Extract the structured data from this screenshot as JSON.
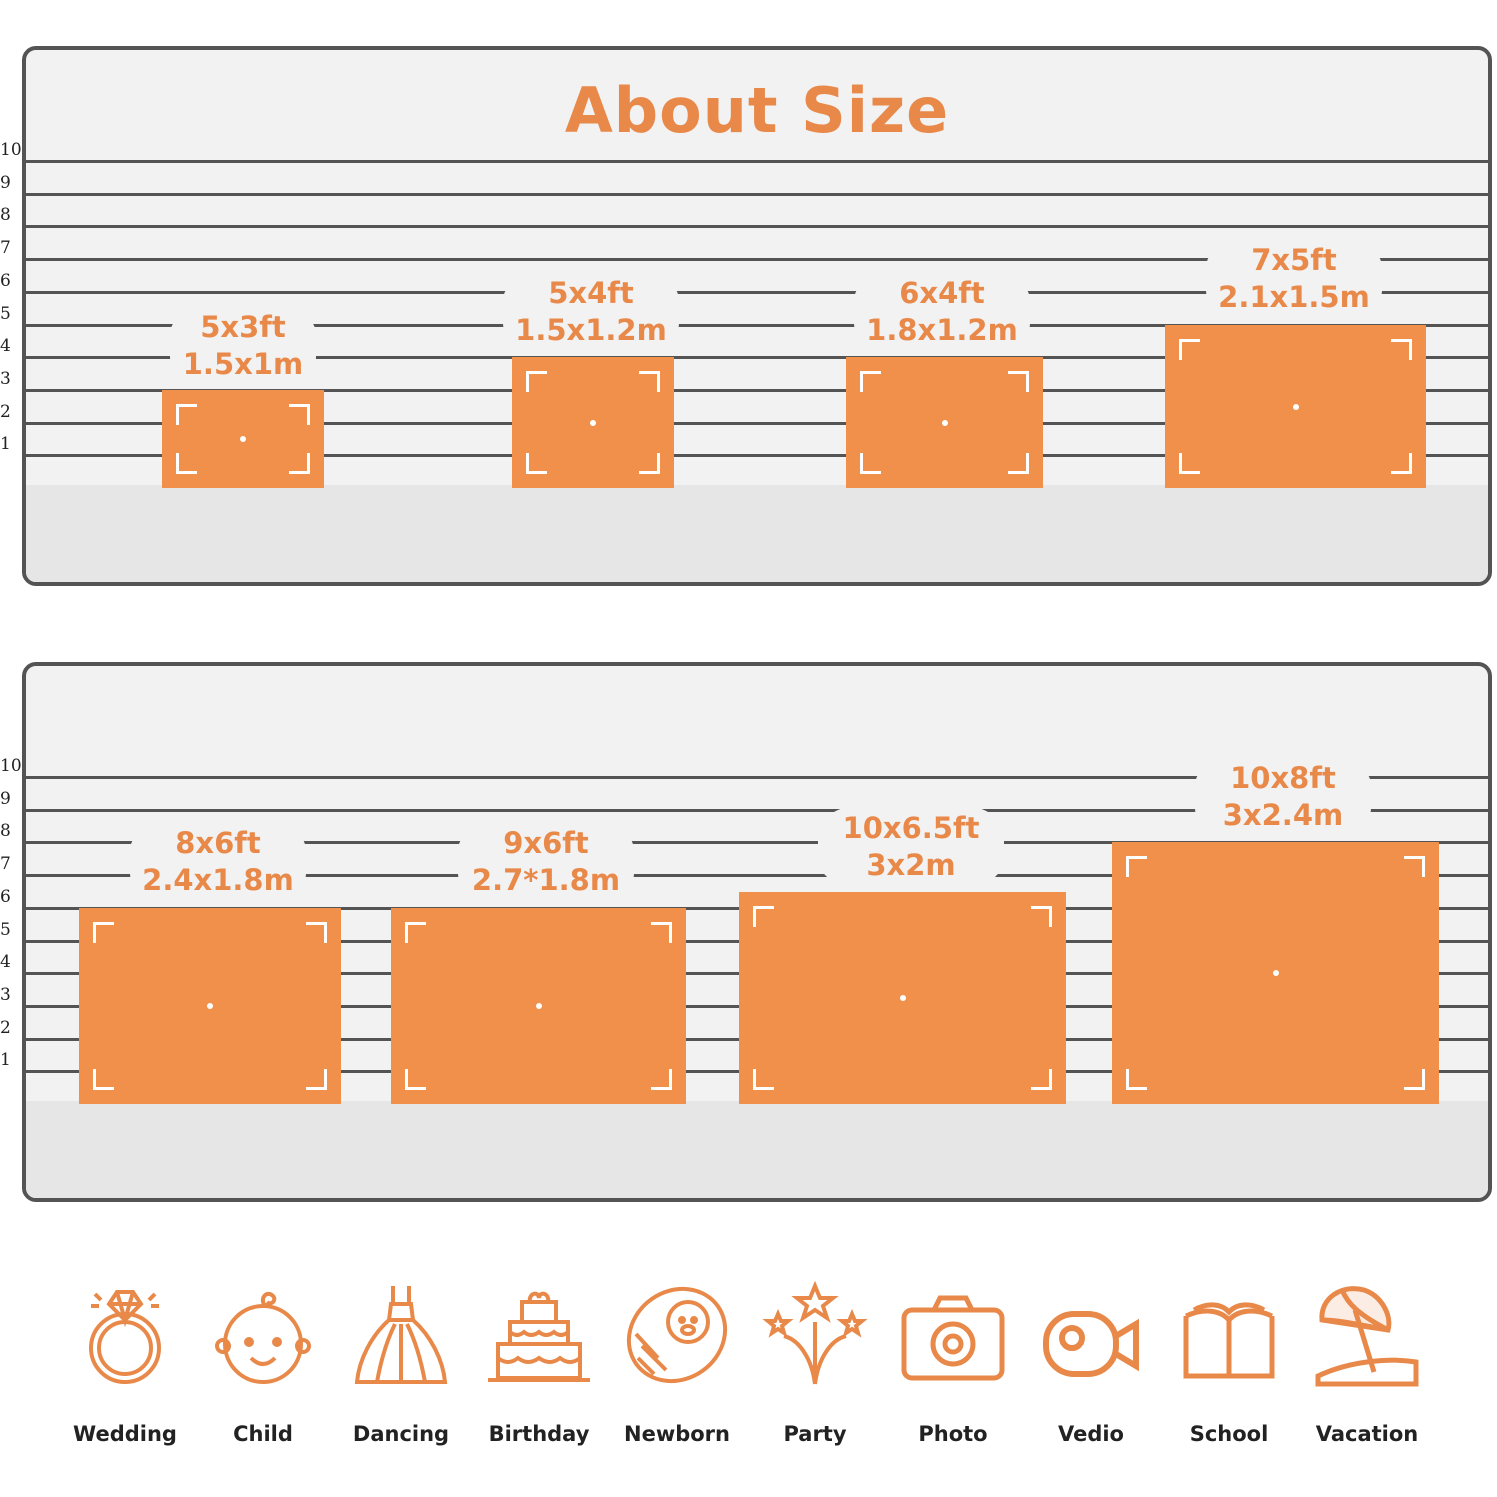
{
  "title": "About Size",
  "ruler": [
    "10",
    "9",
    "8",
    "7",
    "6",
    "5",
    "4",
    "3",
    "2",
    "1"
  ],
  "top_sizes": [
    {
      "ft": "5x3ft",
      "m": "1.5x1m"
    },
    {
      "ft": "5x4ft",
      "m": "1.5x1.2m"
    },
    {
      "ft": "6x4ft",
      "m": "1.8x1.2m"
    },
    {
      "ft": "7x5ft",
      "m": "2.1x1.5m"
    }
  ],
  "bottom_sizes": [
    {
      "ft": "8x6ft",
      "m": "2.4x1.8m"
    },
    {
      "ft": "9x6ft",
      "m": "2.7*1.8m"
    },
    {
      "ft": "10x6.5ft",
      "m": "3x2m"
    },
    {
      "ft": "10x8ft",
      "m": "3x2.4m"
    }
  ],
  "accent_color": "#f0904a",
  "uses": [
    {
      "label": "Wedding",
      "icon": "ring-icon"
    },
    {
      "label": "Child",
      "icon": "baby-face-icon"
    },
    {
      "label": "Dancing",
      "icon": "dress-icon"
    },
    {
      "label": "Birthday",
      "icon": "cake-icon"
    },
    {
      "label": "Newborn",
      "icon": "swaddled-baby-icon"
    },
    {
      "label": "Party",
      "icon": "fireworks-icon"
    },
    {
      "label": "Photo",
      "icon": "camera-icon"
    },
    {
      "label": "Vedio",
      "icon": "video-camera-icon"
    },
    {
      "label": "School",
      "icon": "book-icon"
    },
    {
      "label": "Vacation",
      "icon": "beach-umbrella-icon"
    }
  ]
}
